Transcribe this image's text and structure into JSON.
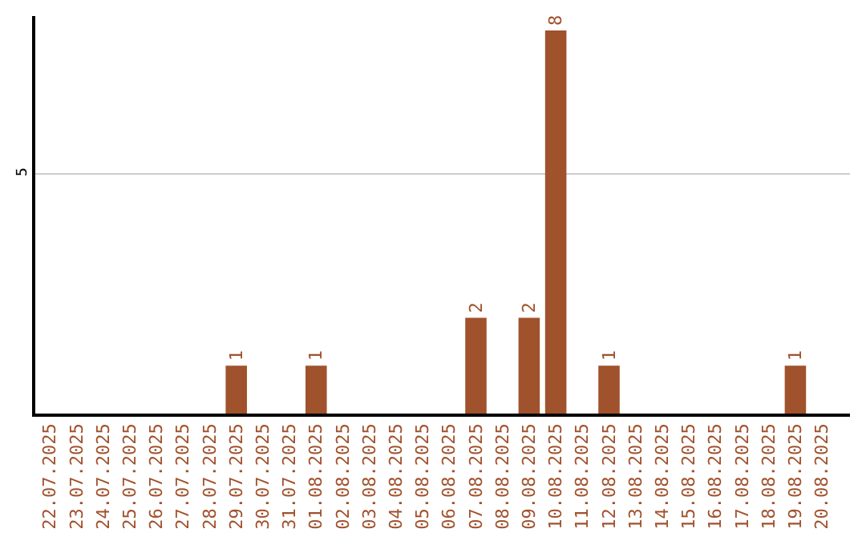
{
  "chart_data": {
    "type": "bar",
    "categories": [
      "22.07.2025",
      "23.07.2025",
      "24.07.2025",
      "25.07.2025",
      "26.07.2025",
      "27.07.2025",
      "28.07.2025",
      "29.07.2025",
      "30.07.2025",
      "31.07.2025",
      "01.08.2025",
      "02.08.2025",
      "03.08.2025",
      "04.08.2025",
      "05.08.2025",
      "06.08.2025",
      "07.08.2025",
      "08.08.2025",
      "09.08.2025",
      "10.08.2025",
      "11.08.2025",
      "12.08.2025",
      "13.08.2025",
      "14.08.2025",
      "15.08.2025",
      "16.08.2025",
      "17.08.2025",
      "18.08.2025",
      "19.08.2025",
      "20.08.2025"
    ],
    "values": [
      0,
      0,
      0,
      0,
      0,
      0,
      0,
      1,
      0,
      0,
      1,
      0,
      0,
      0,
      0,
      0,
      2,
      0,
      2,
      8,
      0,
      1,
      0,
      0,
      0,
      0,
      0,
      0,
      1,
      0
    ],
    "value_labels": [
      null,
      null,
      null,
      null,
      null,
      null,
      null,
      "1",
      null,
      null,
      "1",
      null,
      null,
      null,
      null,
      null,
      "2",
      null,
      "2",
      "8",
      null,
      "1",
      null,
      null,
      null,
      null,
      null,
      null,
      "1",
      null
    ],
    "color": "#a0522d",
    "ylim": [
      0,
      8.3
    ],
    "yticks": [
      5
    ],
    "grid": "y",
    "legend": false
  }
}
